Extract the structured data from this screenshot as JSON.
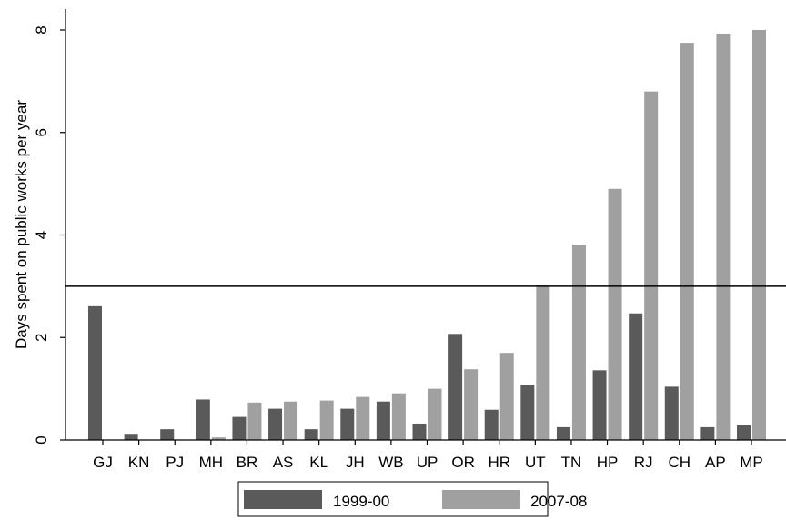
{
  "chart_data": {
    "type": "bar",
    "ylabel": "Days spent on public works per year",
    "xlabel": "",
    "ylim": [
      0,
      8
    ],
    "yticks": [
      0,
      2,
      4,
      6,
      8
    ],
    "grid": false,
    "reference_line": 3,
    "legend_position": "bottom",
    "categories": [
      "GJ",
      "KN",
      "PJ",
      "MH",
      "BR",
      "AS",
      "KL",
      "JH",
      "WB",
      "UP",
      "OR",
      "HR",
      "UT",
      "TN",
      "HP",
      "RJ",
      "CH",
      "AP",
      "MP"
    ],
    "series": [
      {
        "name": "1999-00",
        "color": "#5a5a5a",
        "values": [
          2.61,
          0.12,
          0.21,
          0.79,
          0.45,
          0.61,
          0.21,
          0.61,
          0.75,
          0.32,
          2.07,
          0.59,
          1.07,
          0.25,
          1.36,
          2.47,
          1.04,
          0.25,
          0.29
        ]
      },
      {
        "name": "2007-08",
        "color": "#a0a0a0",
        "values": [
          0.0,
          0.0,
          0.0,
          0.05,
          0.73,
          0.75,
          0.77,
          0.84,
          0.91,
          1.0,
          1.38,
          1.7,
          3.02,
          3.81,
          4.9,
          6.8,
          7.75,
          7.93,
          8.0
        ]
      }
    ]
  }
}
